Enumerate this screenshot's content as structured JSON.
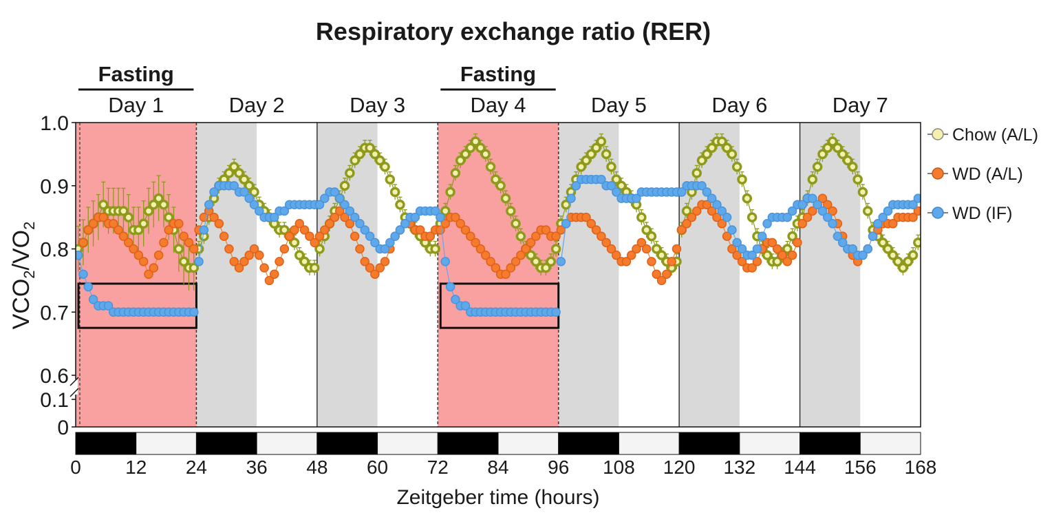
{
  "chart_data": {
    "type": "scatter",
    "title": "Respiratory exchange ratio (RER)",
    "xlabel": "Zeitgeber time (hours)",
    "ylabel": "VCO2/VO2",
    "x_ticks": [
      0,
      12,
      24,
      36,
      48,
      60,
      72,
      84,
      96,
      108,
      120,
      132,
      144,
      156,
      168
    ],
    "xlim": [
      0,
      168
    ],
    "y_ticks": [
      "0",
      "0.1",
      "0.6",
      "0.7",
      "0.8",
      "0.9",
      "1.0"
    ],
    "ylim": [
      0.6,
      1.0
    ],
    "axis_break": "between 0.1 and 0.6",
    "legend_position": "right",
    "grid": false,
    "days": [
      "Day 1",
      "Day 2",
      "Day 3",
      "Day 4",
      "Day 5",
      "Day 6",
      "Day 7"
    ],
    "fasting_label": "Fasting",
    "fasting_periods": [
      [
        0,
        24
      ],
      [
        72,
        96
      ]
    ],
    "dark_periods": [
      [
        0,
        12
      ],
      [
        24,
        36
      ],
      [
        48,
        60
      ],
      [
        72,
        84
      ],
      [
        96,
        108
      ],
      [
        120,
        132
      ],
      [
        144,
        156
      ]
    ],
    "highlight_boxes": [
      [
        0,
        24,
        0.675,
        0.745
      ],
      [
        72,
        96,
        0.675,
        0.745
      ]
    ],
    "colors": {
      "fasting": "#f9a0a0",
      "dark_shade": "#d9d9d9",
      "chow": "#8e9a1c",
      "chow_fill": "#f4f1b0",
      "wd_al": "#f47c2c",
      "wd_if": "#5fa8ea"
    },
    "series": [
      {
        "name": "Chow (A/L)",
        "values_by_day": [
          [
            0.8,
            0.81,
            0.83,
            0.84,
            0.85,
            0.87,
            0.86,
            0.86,
            0.86,
            0.86,
            0.85,
            0.83,
            0.83,
            0.84,
            0.86,
            0.87,
            0.88,
            0.87,
            0.85,
            0.83,
            0.8,
            0.78,
            0.77,
            0.77
          ],
          [
            0.8,
            0.82,
            0.85,
            0.88,
            0.9,
            0.91,
            0.92,
            0.93,
            0.92,
            0.91,
            0.9,
            0.89,
            0.87,
            0.86,
            0.85,
            0.84,
            0.83,
            0.83,
            0.82,
            0.81,
            0.79,
            0.78,
            0.77,
            0.77
          ],
          [
            0.8,
            0.82,
            0.84,
            0.86,
            0.88,
            0.9,
            0.92,
            0.94,
            0.95,
            0.96,
            0.96,
            0.95,
            0.94,
            0.93,
            0.91,
            0.89,
            0.87,
            0.85,
            0.84,
            0.83,
            0.82,
            0.81,
            0.8,
            0.8
          ],
          [
            0.84,
            0.86,
            0.89,
            0.92,
            0.94,
            0.95,
            0.96,
            0.97,
            0.96,
            0.95,
            0.93,
            0.91,
            0.9,
            0.88,
            0.86,
            0.84,
            0.82,
            0.8,
            0.79,
            0.78,
            0.77,
            0.77,
            0.78,
            0.8
          ],
          [
            0.84,
            0.87,
            0.89,
            0.91,
            0.93,
            0.94,
            0.95,
            0.96,
            0.97,
            0.95,
            0.93,
            0.91,
            0.9,
            0.89,
            0.88,
            0.87,
            0.85,
            0.83,
            0.82,
            0.8,
            0.79,
            0.78,
            0.77,
            0.78
          ],
          [
            0.83,
            0.86,
            0.89,
            0.92,
            0.94,
            0.95,
            0.96,
            0.97,
            0.97,
            0.96,
            0.95,
            0.93,
            0.91,
            0.88,
            0.85,
            0.82,
            0.8,
            0.79,
            0.78,
            0.78,
            0.79,
            0.8,
            0.82,
            0.84
          ],
          [
            0.85,
            0.88,
            0.91,
            0.93,
            0.95,
            0.96,
            0.97,
            0.96,
            0.95,
            0.94,
            0.93,
            0.91,
            0.89,
            0.86,
            0.83,
            0.82,
            0.81,
            0.8,
            0.79,
            0.78,
            0.77,
            0.78,
            0.79,
            0.81
          ]
        ]
      },
      {
        "name": "WD (A/L)",
        "values_by_day": [
          [
            0.79,
            0.81,
            0.83,
            0.84,
            0.85,
            0.85,
            0.84,
            0.84,
            0.83,
            0.82,
            0.81,
            0.8,
            0.79,
            0.78,
            0.76,
            0.77,
            0.79,
            0.81,
            0.83,
            0.84,
            0.84,
            0.82,
            0.81,
            0.8
          ],
          [
            0.83,
            0.85,
            0.86,
            0.85,
            0.84,
            0.82,
            0.8,
            0.78,
            0.77,
            0.78,
            0.79,
            0.8,
            0.79,
            0.77,
            0.75,
            0.76,
            0.78,
            0.8,
            0.82,
            0.83,
            0.84,
            0.83,
            0.82,
            0.81
          ],
          [
            0.82,
            0.83,
            0.84,
            0.85,
            0.86,
            0.85,
            0.84,
            0.82,
            0.8,
            0.78,
            0.77,
            0.76,
            0.77,
            0.78,
            0.8,
            0.82,
            0.83,
            0.84,
            0.84,
            0.83,
            0.83,
            0.82,
            0.82,
            0.83
          ],
          [
            0.83,
            0.84,
            0.85,
            0.85,
            0.84,
            0.83,
            0.82,
            0.81,
            0.8,
            0.79,
            0.78,
            0.77,
            0.76,
            0.76,
            0.77,
            0.78,
            0.79,
            0.8,
            0.81,
            0.82,
            0.83,
            0.83,
            0.82,
            0.82
          ],
          [
            0.83,
            0.84,
            0.85,
            0.85,
            0.85,
            0.85,
            0.84,
            0.83,
            0.82,
            0.81,
            0.8,
            0.79,
            0.78,
            0.78,
            0.79,
            0.8,
            0.81,
            0.8,
            0.78,
            0.76,
            0.75,
            0.76,
            0.78,
            0.8
          ],
          [
            0.83,
            0.84,
            0.85,
            0.86,
            0.87,
            0.87,
            0.86,
            0.85,
            0.84,
            0.82,
            0.8,
            0.79,
            0.78,
            0.77,
            0.77,
            0.78,
            0.8,
            0.81,
            0.81,
            0.8,
            0.79,
            0.78,
            0.79,
            0.81
          ],
          [
            0.84,
            0.85,
            0.86,
            0.87,
            0.88,
            0.87,
            0.86,
            0.84,
            0.82,
            0.8,
            0.79,
            0.78,
            0.79,
            0.8,
            0.82,
            0.83,
            0.84,
            0.84,
            0.84,
            0.85,
            0.85,
            0.85,
            0.85,
            0.86
          ]
        ]
      },
      {
        "name": "WD (IF)",
        "values_by_day": [
          [
            0.79,
            0.76,
            0.74,
            0.72,
            0.71,
            0.71,
            0.71,
            0.7,
            0.7,
            0.7,
            0.7,
            0.7,
            0.7,
            0.7,
            0.7,
            0.7,
            0.7,
            0.7,
            0.7,
            0.7,
            0.7,
            0.7,
            0.7,
            0.7
          ],
          [
            0.78,
            0.83,
            0.87,
            0.89,
            0.9,
            0.9,
            0.9,
            0.9,
            0.89,
            0.89,
            0.88,
            0.87,
            0.86,
            0.85,
            0.85,
            0.85,
            0.86,
            0.86,
            0.87,
            0.87,
            0.87,
            0.87,
            0.87,
            0.87
          ],
          [
            0.87,
            0.88,
            0.89,
            0.89,
            0.88,
            0.87,
            0.86,
            0.85,
            0.84,
            0.83,
            0.82,
            0.81,
            0.8,
            0.8,
            0.81,
            0.82,
            0.83,
            0.84,
            0.85,
            0.85,
            0.86,
            0.86,
            0.86,
            0.86
          ],
          [
            0.85,
            0.78,
            0.74,
            0.72,
            0.71,
            0.71,
            0.7,
            0.7,
            0.7,
            0.7,
            0.7,
            0.7,
            0.7,
            0.7,
            0.7,
            0.7,
            0.7,
            0.7,
            0.7,
            0.7,
            0.7,
            0.7,
            0.7,
            0.7
          ],
          [
            0.78,
            0.84,
            0.88,
            0.9,
            0.91,
            0.91,
            0.91,
            0.91,
            0.91,
            0.9,
            0.9,
            0.89,
            0.88,
            0.88,
            0.88,
            0.88,
            0.89,
            0.89,
            0.89,
            0.89,
            0.89,
            0.89,
            0.89,
            0.89
          ],
          [
            0.89,
            0.9,
            0.9,
            0.9,
            0.9,
            0.89,
            0.88,
            0.87,
            0.86,
            0.85,
            0.83,
            0.81,
            0.8,
            0.79,
            0.79,
            0.8,
            0.82,
            0.84,
            0.85,
            0.85,
            0.85,
            0.85,
            0.86,
            0.87
          ],
          [
            0.87,
            0.88,
            0.88,
            0.87,
            0.86,
            0.85,
            0.84,
            0.82,
            0.81,
            0.8,
            0.8,
            0.79,
            0.79,
            0.8,
            0.82,
            0.84,
            0.85,
            0.86,
            0.87,
            0.87,
            0.87,
            0.87,
            0.87,
            0.88
          ]
        ]
      }
    ]
  }
}
